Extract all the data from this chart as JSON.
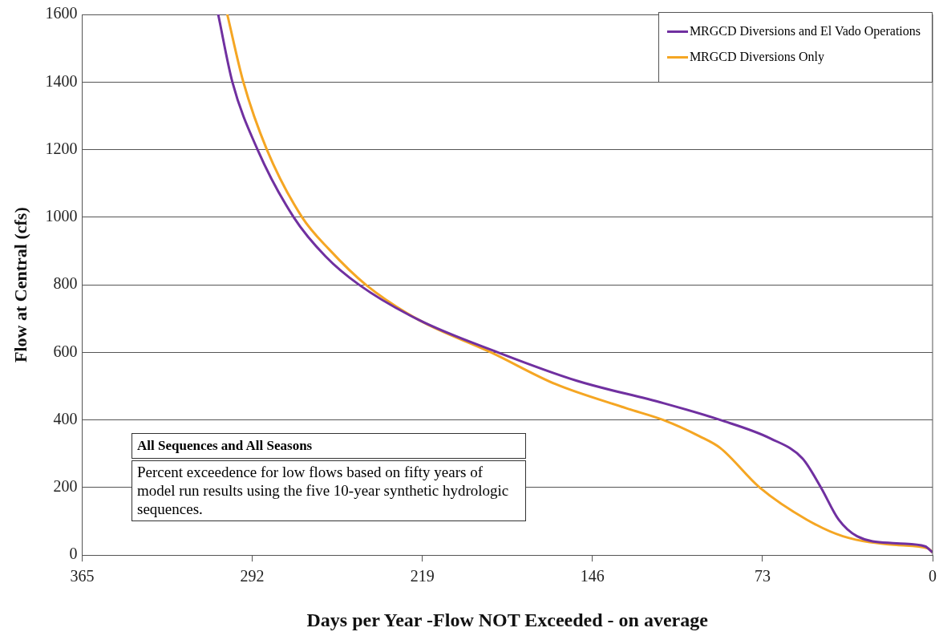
{
  "chart_data": {
    "type": "line",
    "xlabel": "Days per Year -Flow NOT Exceeded - on average",
    "ylabel": "Flow at Central (cfs)",
    "xlim": [
      365,
      0
    ],
    "xticks": [
      365,
      292,
      219,
      146,
      73,
      0
    ],
    "ylim": [
      0,
      1600
    ],
    "yticks": [
      0,
      200,
      400,
      600,
      800,
      1000,
      1200,
      1400,
      1600
    ],
    "grid": "y",
    "legend": "top right",
    "marker": "none",
    "line_style": "solid",
    "annotations": [
      "All Sequences and All Seasons",
      "Percent exceedence for low flows based on fifty years of model run results using the five 10-year synthetic hydrologic sequences."
    ],
    "series": [
      {
        "name": "MRGCD Diversions and El Vado Operations",
        "color": "#7030a0",
        "x": [
          306.6,
          300.5,
          289.7,
          274.2,
          260.5,
          246.1,
          220.5,
          186.6,
          152.7,
          115.6,
          91.1,
          69.5,
          55.8,
          47.9,
          40.3,
          32.4,
          15.4,
          3.2,
          0
        ],
        "values": [
          1600,
          1400,
          1200,
          1000,
          884,
          800,
          696,
          600,
          516,
          450,
          400,
          345,
          286,
          200,
          105,
          56,
          35,
          26,
          8
        ]
      },
      {
        "name": "MRGCD Diversions Only",
        "color": "#f5a623",
        "x": [
          302.7,
          295.8,
          285.7,
          270.6,
          259,
          243.2,
          220.5,
          189.5,
          161.8,
          131.1,
          115.6,
          100.1,
          91.1,
          74.2,
          54,
          38.5,
          15.4,
          2,
          0
        ],
        "values": [
          1600,
          1400,
          1200,
          1000,
          905,
          800,
          696,
          600,
          506,
          434,
          400,
          352,
          317,
          200,
          105,
          56,
          30,
          20,
          8
        ]
      }
    ]
  }
}
